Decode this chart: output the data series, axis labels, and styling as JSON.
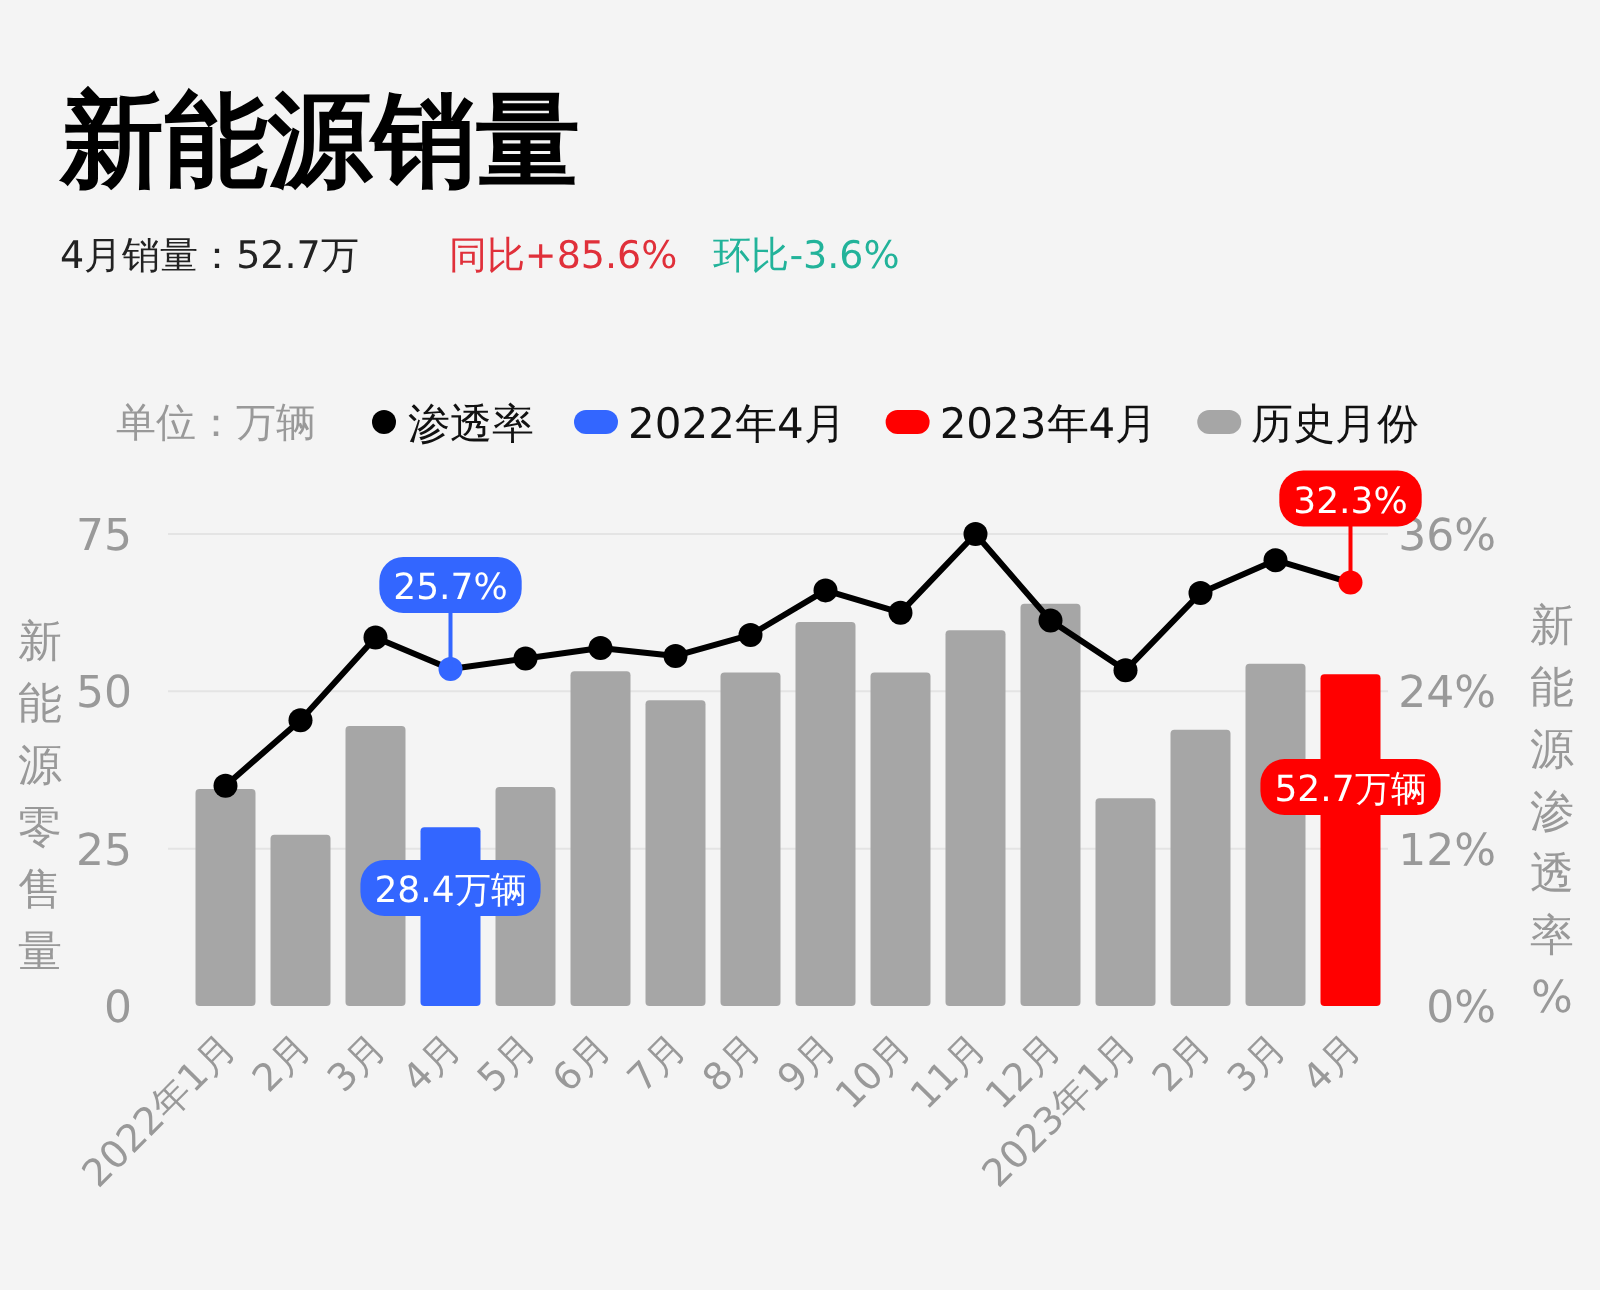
{
  "chart_data": {
    "type": "bar",
    "title": "新能源销量",
    "subtitle": "4月销量：52.7万",
    "annotations": [
      "单位：万辆",
      "同比+85.6%",
      "环比-3.6%"
    ],
    "ylabel": "新能源零售量",
    "y2label": "新能源渗透率%",
    "categories": [
      "2022年1月",
      "2月",
      "3月",
      "4月",
      "5月",
      "6月",
      "7月",
      "8月",
      "9月",
      "10月",
      "11月",
      "12月",
      "2023年1月",
      "2月",
      "3月",
      "4月"
    ],
    "grid": "y",
    "legend": "top",
    "ylim": [
      0,
      75
    ],
    "yticks": [
      0,
      25,
      50,
      75
    ],
    "y2lim": [
      0,
      36
    ],
    "y2ticks": [
      {
        "value": 0,
        "label": "0%"
      },
      {
        "value": 12,
        "label": "12%"
      },
      {
        "value": 24,
        "label": "24%"
      },
      {
        "value": 36,
        "label": "36%"
      }
    ],
    "series": [
      {
        "name": "渗透率",
        "type": "line",
        "axis": "y2",
        "marker": "circle",
        "color": "#000000",
        "colors": [
          "#000000",
          "#000000",
          "#000000",
          "#3366ff",
          "#000000",
          "#000000",
          "#000000",
          "#000000",
          "#000000",
          "#000000",
          "#000000",
          "#000000",
          "#000000",
          "#000000",
          "#000000",
          "#ff0000"
        ],
        "values": [
          16.8,
          21.8,
          28.1,
          25.7,
          26.5,
          27.3,
          26.7,
          28.3,
          31.7,
          30.0,
          36.0,
          29.4,
          25.6,
          31.5,
          34.0,
          32.3
        ],
        "value_labels": [
          null,
          null,
          null,
          "25.7%",
          null,
          null,
          null,
          null,
          null,
          null,
          null,
          null,
          null,
          null,
          null,
          "32.3%"
        ]
      },
      {
        "name": "2022年4月",
        "color": "#3366ff",
        "values": [
          null,
          null,
          null,
          28.4,
          null,
          null,
          null,
          null,
          null,
          null,
          null,
          null,
          null,
          null,
          null,
          null
        ],
        "value_labels": [
          null,
          null,
          null,
          "28.4万辆",
          null,
          null,
          null,
          null,
          null,
          null,
          null,
          null,
          null,
          null,
          null,
          null
        ]
      },
      {
        "name": "2023年4月",
        "color": "#ff0000",
        "values": [
          null,
          null,
          null,
          null,
          null,
          null,
          null,
          null,
          null,
          null,
          null,
          null,
          null,
          null,
          null,
          52.7
        ],
        "value_labels": [
          null,
          null,
          null,
          null,
          null,
          null,
          null,
          null,
          null,
          null,
          null,
          null,
          null,
          null,
          null,
          "52.7万辆"
        ]
      },
      {
        "name": "历史月份",
        "color": "#a6a6a6",
        "values": [
          34.5,
          27.2,
          44.5,
          null,
          34.8,
          53.2,
          48.6,
          53.0,
          61.0,
          53.0,
          59.7,
          63.9,
          33.0,
          43.9,
          54.4,
          null
        ]
      }
    ]
  }
}
